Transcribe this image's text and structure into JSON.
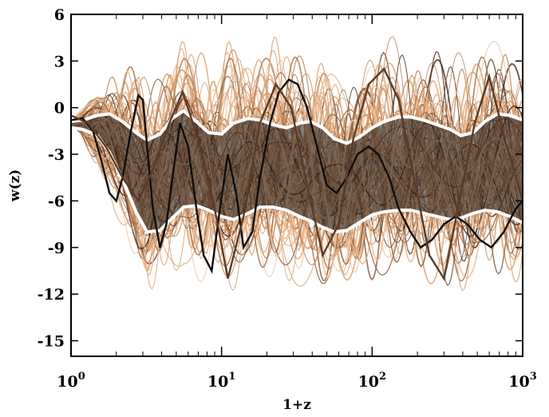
{
  "chart_data": {
    "type": "line",
    "xlabel": "1+z",
    "ylabel": "w(z)",
    "x_scale": "log",
    "xlim": [
      1,
      1000
    ],
    "ylim": [
      -16,
      6
    ],
    "x_ticks": [
      {
        "value": 1,
        "base": "10",
        "exp": "0"
      },
      {
        "value": 10,
        "base": "10",
        "exp": "1"
      },
      {
        "value": 100,
        "base": "10",
        "exp": "2"
      },
      {
        "value": 1000,
        "base": "10",
        "exp": "3"
      }
    ],
    "y_ticks": [
      6,
      3,
      0,
      -3,
      -6,
      -9,
      -12,
      -15
    ],
    "band": {
      "upper": {
        "x": [
          1,
          1.2,
          1.5,
          1.8,
          2.2,
          2.7,
          3.2,
          3.9,
          4.7,
          5.6,
          6.8,
          8.2,
          10,
          12,
          15,
          18,
          22,
          27,
          33,
          39,
          47,
          56,
          68,
          82,
          100,
          120,
          150,
          180,
          220,
          270,
          330,
          390,
          470,
          560,
          680,
          820,
          1000
        ],
        "y": [
          -0.9,
          -0.8,
          -0.5,
          -0.4,
          -0.9,
          -1.6,
          -2.1,
          -1.7,
          -0.7,
          -0.2,
          -0.9,
          -1.6,
          -1.7,
          -1.0,
          -0.7,
          -0.8,
          -1.1,
          -1.3,
          -1.0,
          -0.9,
          -1.3,
          -2.0,
          -2.3,
          -1.9,
          -1.3,
          -0.9,
          -0.6,
          -0.6,
          -0.8,
          -1.1,
          -1.4,
          -1.8,
          -1.6,
          -0.9,
          -0.4,
          -0.5,
          -0.8
        ]
      },
      "lower": {
        "x": [
          1,
          1.2,
          1.5,
          1.8,
          2.2,
          2.7,
          3.2,
          3.9,
          4.7,
          5.6,
          6.8,
          8.2,
          10,
          12,
          15,
          18,
          22,
          27,
          33,
          39,
          47,
          56,
          68,
          82,
          100,
          120,
          150,
          180,
          220,
          270,
          330,
          390,
          470,
          560,
          680,
          820,
          1000
        ],
        "y": [
          -1.3,
          -1.4,
          -1.8,
          -2.9,
          -4.6,
          -6.7,
          -8.0,
          -7.9,
          -7.1,
          -6.4,
          -6.3,
          -6.6,
          -7.0,
          -7.2,
          -6.8,
          -6.4,
          -6.4,
          -6.6,
          -7.0,
          -7.3,
          -7.7,
          -8.0,
          -7.9,
          -7.4,
          -6.9,
          -6.7,
          -6.6,
          -6.6,
          -6.8,
          -7.0,
          -7.2,
          -7.1,
          -6.8,
          -6.6,
          -6.7,
          -7.0,
          -7.4
        ]
      },
      "fill_color": "#1d1a17",
      "edge_color": "#ffffff"
    },
    "highlight_series": [
      {
        "color": "#0d0d0d",
        "x": [
          1,
          1.2,
          1.4,
          1.6,
          1.8,
          2.0,
          2.2,
          2.5,
          2.8,
          3.0,
          3.2,
          3.5,
          3.9,
          4.3,
          4.8,
          5.3,
          6.0,
          6.8,
          7.6,
          8.6,
          9.6,
          11,
          12.5,
          14,
          16,
          18,
          21,
          24,
          28,
          32,
          37,
          43,
          50,
          58,
          68,
          80,
          95,
          110,
          130,
          150,
          180,
          210,
          250,
          300,
          360,
          430,
          520,
          620,
          750,
          900,
          1000
        ],
        "y": [
          -0.8,
          -0.7,
          -1.5,
          -3.5,
          -5.5,
          -6.0,
          -4.5,
          -1.5,
          0.8,
          0.5,
          -2.5,
          -6.5,
          -9.0,
          -7.5,
          -4.0,
          -1.0,
          -2.5,
          -6.5,
          -9.5,
          -10.5,
          -7.0,
          -3.0,
          -5.5,
          -9.0,
          -8.0,
          -4.5,
          -1.0,
          1.0,
          1.8,
          1.5,
          0.0,
          -2.5,
          -5.0,
          -5.5,
          -4.5,
          -3.0,
          -2.5,
          -3.0,
          -4.5,
          -6.5,
          -8.0,
          -9.0,
          -8.5,
          -7.5,
          -7.0,
          -7.5,
          -8.5,
          -9.0,
          -8.0,
          -6.5,
          -6.0
        ]
      },
      {
        "color": "#5a3a24",
        "x": [
          1,
          1.3,
          1.7,
          2.2,
          2.8,
          3.5,
          4.5,
          5.5,
          7,
          9,
          11,
          14,
          18,
          23,
          29,
          37,
          47,
          60,
          75,
          95,
          120,
          150,
          190,
          240,
          300,
          380,
          480,
          600,
          760,
          1000
        ],
        "y": [
          -0.5,
          -1.0,
          -2.5,
          -4.5,
          -6.0,
          -4.0,
          -1.0,
          1.0,
          -2.0,
          -6.5,
          -11.0,
          -7.0,
          -1.0,
          1.5,
          0.0,
          -5.0,
          -9.5,
          -7.5,
          -2.0,
          1.5,
          2.5,
          0.5,
          -4.5,
          -9.5,
          -11.0,
          -6.0,
          -1.0,
          2.0,
          -2.0,
          -6.0
        ]
      }
    ],
    "colors": [
      "#4a2e1c",
      "#6b4228",
      "#8a5a38",
      "#a66f45",
      "#bd8355",
      "#cf9465",
      "#dca476",
      "#e6b489",
      "#eec19b"
    ],
    "grid": false
  }
}
